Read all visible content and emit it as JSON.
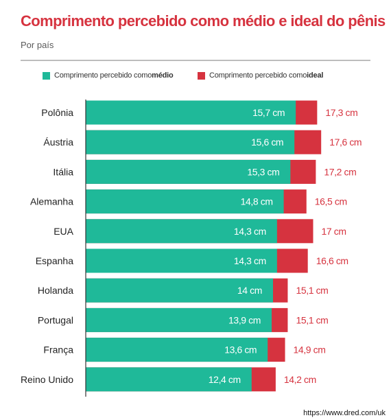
{
  "title": "Comprimento percebido como médio e ideal do pênis",
  "subtitle": "Por país",
  "credit": "https://www.dred.com/uk",
  "colors": {
    "medio": "#1fb999",
    "ideal": "#d6333f",
    "title": "#d6333f"
  },
  "legend": {
    "medio_prefix": "Comprimento percebido como ",
    "medio_bold": "médio",
    "ideal_prefix": "Comprimento percebido como ",
    "ideal_bold": "ideal"
  },
  "chart_data": {
    "type": "bar",
    "orientation": "horizontal",
    "stacked_overlay": true,
    "categories": [
      "Polônia",
      "Áustria",
      "Itália",
      "Alemanha",
      "EUA",
      "Espanha",
      "Holanda",
      "Portugal",
      "França",
      "Reino Unido"
    ],
    "series": [
      {
        "name": "Comprimento percebido como médio",
        "values": [
          15.7,
          15.6,
          15.3,
          14.8,
          14.3,
          14.3,
          14.0,
          13.9,
          13.6,
          12.4
        ]
      },
      {
        "name": "Comprimento percebido como ideal",
        "values": [
          17.3,
          17.6,
          17.2,
          16.5,
          17.0,
          16.6,
          15.1,
          15.1,
          14.9,
          14.2
        ]
      }
    ],
    "data_labels": {
      "medio": [
        "15,7 cm",
        "15,6 cm",
        "15,3 cm",
        "14,8 cm",
        "14,3 cm",
        "14,3 cm",
        "14 cm",
        "13,9 cm",
        "13,6 cm",
        "12,4 cm"
      ],
      "ideal": [
        "17,3 cm",
        "17,6 cm",
        "17,2 cm",
        "16,5 cm",
        "17 cm",
        "16,6 cm",
        "15,1 cm",
        "15,1 cm",
        "14,9 cm",
        "14,2 cm"
      ]
    },
    "legend_position": "top-left",
    "grid": false
  }
}
